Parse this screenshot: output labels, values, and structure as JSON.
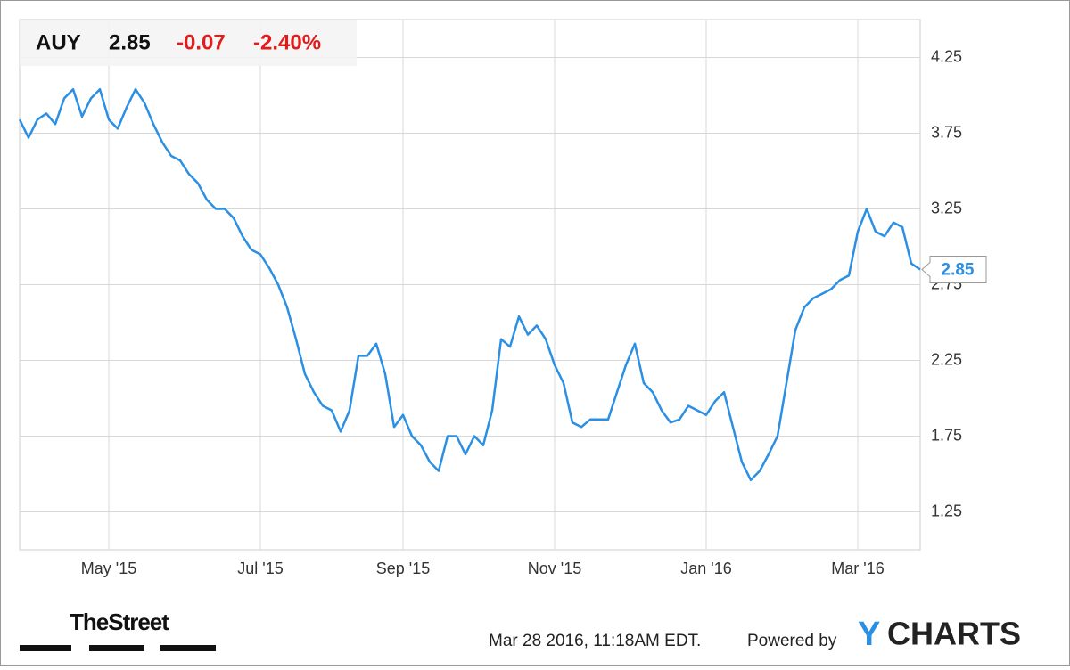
{
  "chart_data": {
    "type": "line",
    "quote": {
      "ticker": "AUY",
      "price": "2.85",
      "change": "-0.07",
      "change_pct": "-2.40%"
    },
    "categories": [
      null,
      null,
      null,
      null,
      null,
      null,
      null,
      null,
      null,
      null,
      "May '15",
      null,
      null,
      null,
      null,
      null,
      null,
      null,
      null,
      null,
      null,
      null,
      null,
      null,
      null,
      null,
      null,
      "Jul '15",
      null,
      null,
      null,
      null,
      null,
      null,
      null,
      null,
      null,
      null,
      null,
      null,
      null,
      null,
      null,
      "Sep '15",
      null,
      null,
      null,
      null,
      null,
      null,
      null,
      null,
      null,
      null,
      null,
      null,
      null,
      null,
      null,
      null,
      "Nov '15",
      null,
      null,
      null,
      null,
      null,
      null,
      null,
      null,
      null,
      null,
      null,
      null,
      null,
      null,
      null,
      null,
      "Jan '16",
      null,
      null,
      null,
      null,
      null,
      null,
      null,
      null,
      null,
      null,
      null,
      null,
      null,
      null,
      null,
      null,
      "Mar '16",
      null,
      null,
      null,
      null,
      null,
      null,
      null
    ],
    "series": [
      {
        "name": "AUY",
        "color": "#2b8fe3",
        "values": [
          3.84,
          3.72,
          3.84,
          3.88,
          3.81,
          3.98,
          4.04,
          3.86,
          3.98,
          4.04,
          3.84,
          3.78,
          3.92,
          4.04,
          3.95,
          3.81,
          3.69,
          3.6,
          3.57,
          3.48,
          3.42,
          3.31,
          3.25,
          3.25,
          3.19,
          3.07,
          2.98,
          2.95,
          2.86,
          2.75,
          2.6,
          2.39,
          2.16,
          2.04,
          1.95,
          1.92,
          1.78,
          1.92,
          2.28,
          2.28,
          2.36,
          2.16,
          1.81,
          1.89,
          1.75,
          1.69,
          1.58,
          1.52,
          1.75,
          1.75,
          1.63,
          1.75,
          1.69,
          1.92,
          2.39,
          2.34,
          2.54,
          2.42,
          2.48,
          2.39,
          2.22,
          2.1,
          1.84,
          1.81,
          1.86,
          1.86,
          1.86,
          2.04,
          2.22,
          2.36,
          2.1,
          2.04,
          1.92,
          1.84,
          1.86,
          1.95,
          1.92,
          1.89,
          1.98,
          2.04,
          1.81,
          1.58,
          1.46,
          1.52,
          1.63,
          1.75,
          2.1,
          2.45,
          2.6,
          2.66,
          2.69,
          2.72,
          2.78,
          2.81,
          3.1,
          3.25,
          3.1,
          3.07,
          3.16,
          3.13,
          2.89,
          2.85
        ]
      }
    ],
    "ylim": [
      1,
      4.5
    ],
    "yticks": [
      1.25,
      1.75,
      2.25,
      2.75,
      3.25,
      3.75,
      4.25
    ],
    "grid": true,
    "footer": {
      "timestamp": "Mar 28 2016, 11:18AM EDT.",
      "powered": "Powered by",
      "brand_y": "Y",
      "brand_rest": "CHARTS",
      "source": "TheStreet"
    }
  }
}
